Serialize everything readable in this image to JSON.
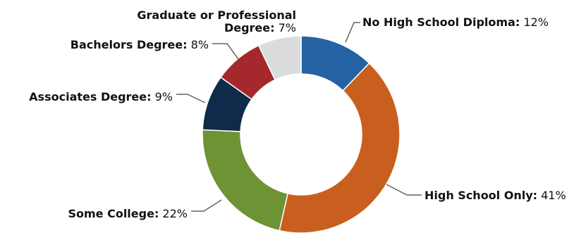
{
  "chart_data": {
    "type": "pie",
    "variant": "donut",
    "categories": [
      "No High School Diploma",
      "High School Only",
      "Some College",
      "Associates Degree",
      "Bachelors Degree",
      "Graduate or Professional Degree"
    ],
    "values": [
      12,
      41,
      22,
      9,
      8,
      7
    ],
    "value_labels": [
      "12%",
      "41%",
      "22%",
      "9%",
      "8%",
      "7%"
    ],
    "label_name_lines": [
      [
        "No High School Diploma"
      ],
      [
        "High School Only"
      ],
      [
        "Some College"
      ],
      [
        "Associates Degree"
      ],
      [
        "Bachelors Degree"
      ],
      [
        "Graduate or Professional",
        "Degree"
      ]
    ],
    "colors": [
      "#2462a3",
      "#c95f1e",
      "#6e9334",
      "#0f2a4a",
      "#a5282d",
      "#d9dbdd"
    ],
    "legend": "none"
  }
}
